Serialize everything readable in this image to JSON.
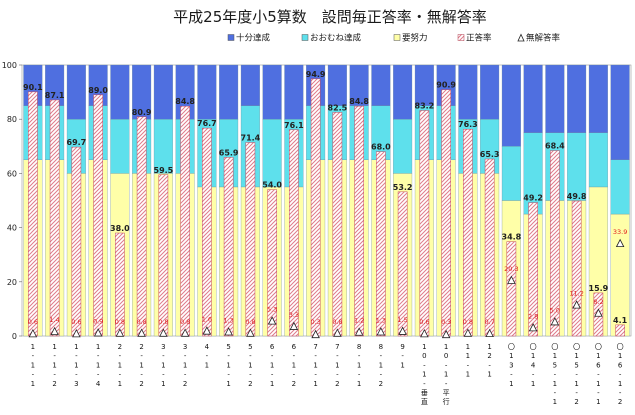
{
  "chart_data": {
    "type": "bar",
    "title": "平成25年度小5算数　設問毎正答率・無解答率",
    "ylim": [
      0,
      100
    ],
    "yticks": [
      0,
      20,
      40,
      60,
      80,
      100
    ],
    "grid": false,
    "legend_position": "top",
    "legend": [
      {
        "name": "十分達成",
        "color": "#4f6fe0",
        "marker": "square"
      },
      {
        "name": "おおむね達成",
        "color": "#5ee0ec",
        "marker": "square"
      },
      {
        "name": "要努力",
        "color": "#ffffa8",
        "marker": "square"
      },
      {
        "name": "正答率",
        "color": "#e07a8a",
        "marker": "hatch"
      },
      {
        "name": "無解答率",
        "color": "#ffffff",
        "marker": "triangle"
      }
    ],
    "categories": [
      "1-1-1",
      "1-1-2",
      "1-1-3",
      "1-1-4",
      "2-1-1",
      "2-1-2",
      "3-1-1",
      "3-1-2",
      "4-1",
      "5-1-1",
      "5-1-2",
      "6-1-1",
      "6-1-2",
      "7-1-1",
      "7-1-2",
      "8-1-1",
      "8-1-2",
      "9-1",
      "10-1-垂直",
      "10-1-平行",
      "11-1",
      "12-1",
      "〇13-1",
      "〇14-1",
      "〇15-1-1",
      "〇15-1-2",
      "〇16-1-1",
      "〇16-1-2"
    ],
    "category_lines": [
      [
        "1",
        "-",
        "1",
        "-",
        "1"
      ],
      [
        "1",
        "-",
        "1",
        "-",
        "2"
      ],
      [
        "1",
        "-",
        "1",
        "-",
        "3"
      ],
      [
        "1",
        "-",
        "1",
        "-",
        "4"
      ],
      [
        "2",
        "-",
        "1",
        "-",
        "1"
      ],
      [
        "2",
        "-",
        "1",
        "-",
        "2"
      ],
      [
        "3",
        "-",
        "1",
        "-",
        "1"
      ],
      [
        "3",
        "-",
        "1",
        "-",
        "2"
      ],
      [
        "4",
        "-",
        "1"
      ],
      [
        "5",
        "-",
        "1",
        "-",
        "1"
      ],
      [
        "5",
        "-",
        "1",
        "-",
        "2"
      ],
      [
        "6",
        "-",
        "1",
        "-",
        "1"
      ],
      [
        "6",
        "-",
        "1",
        "-",
        "2"
      ],
      [
        "7",
        "-",
        "1",
        "-",
        "1"
      ],
      [
        "7",
        "-",
        "1",
        "-",
        "2"
      ],
      [
        "8",
        "-",
        "1",
        "-",
        "1"
      ],
      [
        "8",
        "-",
        "1",
        "-",
        "2"
      ],
      [
        "9",
        "-",
        "1"
      ],
      [
        "1",
        "0",
        "-",
        "1",
        "-",
        "垂",
        "直"
      ],
      [
        "1",
        "0",
        "-",
        "1",
        "-",
        "平",
        "行"
      ],
      [
        "1",
        "1",
        "-",
        "1"
      ],
      [
        "1",
        "2",
        "-",
        "1"
      ],
      [
        "〇",
        "1",
        "3",
        "-",
        "1"
      ],
      [
        "〇",
        "1",
        "4",
        "-",
        "1"
      ],
      [
        "〇",
        "1",
        "5",
        "-",
        "1",
        "-",
        "1"
      ],
      [
        "〇",
        "1",
        "5",
        "-",
        "1",
        "-",
        "2"
      ],
      [
        "〇",
        "1",
        "6",
        "-",
        "1",
        "-",
        "1"
      ],
      [
        "〇",
        "1",
        "6",
        "-",
        "1",
        "-",
        "2"
      ]
    ],
    "stacked_series": [
      {
        "name": "要努力",
        "color": "#ffffa8",
        "values": [
          65,
          65,
          60,
          65,
          60,
          60,
          60,
          60,
          55,
          55,
          55,
          55,
          55,
          65,
          65,
          65,
          65,
          60,
          65,
          65,
          60,
          60,
          50,
          45,
          50,
          50,
          55,
          45
        ]
      },
      {
        "name": "おおむね達成",
        "color": "#5ee0ec",
        "values": [
          20,
          20,
          20,
          20,
          20,
          20,
          20,
          20,
          25,
          25,
          30,
          25,
          25,
          20,
          20,
          20,
          20,
          20,
          20,
          20,
          20,
          20,
          20,
          30,
          25,
          25,
          20,
          20
        ]
      },
      {
        "name": "十分達成",
        "color": "#4f6fe0",
        "values": [
          15,
          15,
          20,
          15,
          20,
          20,
          20,
          20,
          20,
          20,
          15,
          20,
          20,
          15,
          15,
          15,
          15,
          20,
          15,
          15,
          20,
          20,
          30,
          25,
          25,
          25,
          25,
          35
        ]
      }
    ],
    "series": [
      {
        "name": "正答率",
        "color": "#e07a8a",
        "values": [
          90.1,
          87.1,
          69.7,
          89.0,
          38.0,
          80.9,
          59.5,
          84.8,
          76.7,
          65.9,
          71.4,
          54.0,
          76.1,
          94.9,
          82.5,
          84.8,
          68.0,
          53.2,
          83.2,
          90.9,
          76.3,
          65.3,
          34.8,
          49.2,
          68.4,
          49.8,
          15.9,
          4.1
        ],
        "labels": [
          "90.1",
          "87.1",
          "69.7",
          "89.0",
          "38.0",
          "80.9",
          "59.5",
          "84.8",
          "76.7",
          "65.9",
          "71.4",
          "54.0",
          "76.1",
          "94.9",
          "82.5",
          "84.8",
          "68.0",
          "53.2",
          "83.2",
          "90.9",
          "76.3",
          "65.3",
          "34.8",
          "49.2",
          "68.4",
          "49.8",
          "15.9",
          "4.1"
        ]
      },
      {
        "name": "無解答率",
        "color": "#e02020",
        "values": [
          0.6,
          1.4,
          0.6,
          0.9,
          0.8,
          0.8,
          0.8,
          0.8,
          1.6,
          1.3,
          0.8,
          5.3,
          3.3,
          0.3,
          0.8,
          1.2,
          1.3,
          1.5,
          0.6,
          0.3,
          0.8,
          0.7,
          20.3,
          2.8,
          5.0,
          11.2,
          8.2,
          33.9
        ],
        "labels": [
          "0.6",
          "1.4",
          "0.6",
          "0.9",
          "0.8",
          "0.8",
          "0.8",
          "0.8",
          "1.6",
          "1.3",
          "0.8",
          "5.3",
          "3.3",
          "0.3",
          "0.8",
          "1.2",
          "1.3",
          "1.5",
          "0.6",
          "0.3",
          "0.8",
          "0.7",
          "20.3",
          "2.8",
          "5.0",
          "11.2",
          "8.2",
          "33.9"
        ]
      }
    ]
  }
}
